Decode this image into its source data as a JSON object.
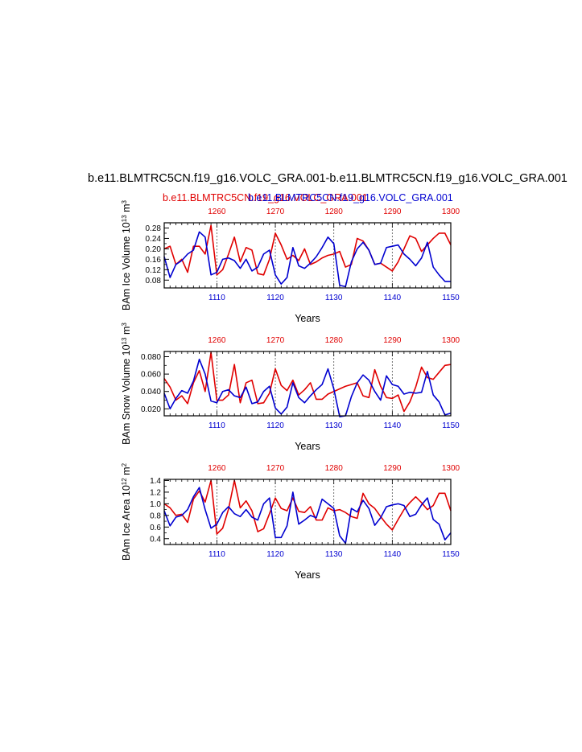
{
  "title": "b.e11.BLMTRC5CN.f19_g16.VOLC_GRA.001-b.e11.BLMTRC5CN.f19_g16.VOLC_GRA.001",
  "subtitle_red": "b.e11.BLMTRC5CN.f19_g16.VOLC_GRA.001",
  "subtitle_blue": "b.e11.BLMTRC5CN.f19_g16.VOLC_GRA.001",
  "colors": {
    "red": "#e00000",
    "blue": "#0000d0"
  },
  "chart_data": [
    {
      "type": "line",
      "ylabel": "BAm Ice Volume 10",
      "ylabel_exp": "13",
      "ylabel_unit": "m",
      "ylabel_unit_exp": "3",
      "xlabel": "Years",
      "ylim": [
        0.05,
        0.3
      ],
      "yticks": [
        0.08,
        0.12,
        0.16,
        0.2,
        0.24,
        0.28
      ],
      "ytick_labels": [
        "0.08",
        "0.12",
        "0.16",
        "0.20",
        "0.24",
        "0.28"
      ],
      "xlim_bottom": [
        1101,
        1150
      ],
      "xticks_bottom": [
        "1110",
        "1120",
        "1130",
        "1140",
        "1150"
      ],
      "xlim_top": [
        1251,
        1300
      ],
      "xticks_top": [
        "1260",
        "1270",
        "1280",
        "1290",
        "1300"
      ],
      "series": [
        {
          "color": "red",
          "axis": "top",
          "x": [
            1251,
            1252,
            1253,
            1254,
            1255,
            1256,
            1257,
            1258,
            1259,
            1260,
            1261,
            1262,
            1263,
            1264,
            1265,
            1266,
            1267,
            1268,
            1269,
            1270,
            1271,
            1272,
            1273,
            1274,
            1275,
            1276,
            1277,
            1278,
            1279,
            1280,
            1281,
            1282,
            1283,
            1284,
            1285,
            1286,
            1287,
            1288,
            1289,
            1290,
            1291,
            1292,
            1293,
            1294,
            1295,
            1296,
            1297,
            1298,
            1299,
            1300
          ],
          "y": [
            0.2,
            0.21,
            0.14,
            0.16,
            0.11,
            0.21,
            0.21,
            0.18,
            0.29,
            0.1,
            0.12,
            0.18,
            0.245,
            0.15,
            0.205,
            0.195,
            0.105,
            0.1,
            0.16,
            0.26,
            0.215,
            0.16,
            0.175,
            0.155,
            0.2,
            0.14,
            0.15,
            0.165,
            0.175,
            0.18,
            0.19,
            0.13,
            0.14,
            0.24,
            0.23,
            0.195,
            0.14,
            0.145,
            0.13,
            0.115,
            0.15,
            0.2,
            0.25,
            0.24,
            0.19,
            0.215,
            0.24,
            0.26,
            0.26,
            0.215
          ]
        },
        {
          "color": "blue",
          "axis": "bottom",
          "x": [
            1101,
            1102,
            1103,
            1104,
            1105,
            1106,
            1107,
            1108,
            1109,
            1110,
            1111,
            1112,
            1113,
            1114,
            1115,
            1116,
            1117,
            1118,
            1119,
            1120,
            1121,
            1122,
            1123,
            1124,
            1125,
            1126,
            1127,
            1128,
            1129,
            1130,
            1131,
            1132,
            1133,
            1134,
            1135,
            1136,
            1137,
            1138,
            1139,
            1140,
            1141,
            1142,
            1143,
            1144,
            1145,
            1146,
            1147,
            1148,
            1149,
            1150
          ],
          "y": [
            0.17,
            0.09,
            0.14,
            0.155,
            0.18,
            0.195,
            0.265,
            0.245,
            0.1,
            0.11,
            0.16,
            0.165,
            0.155,
            0.125,
            0.16,
            0.115,
            0.13,
            0.18,
            0.195,
            0.1,
            0.065,
            0.09,
            0.205,
            0.135,
            0.125,
            0.145,
            0.17,
            0.205,
            0.245,
            0.22,
            0.06,
            0.055,
            0.15,
            0.2,
            0.225,
            0.195,
            0.14,
            0.145,
            0.205,
            0.21,
            0.215,
            0.18,
            0.16,
            0.135,
            0.165,
            0.225,
            0.13,
            0.1,
            0.075,
            0.075
          ]
        }
      ]
    },
    {
      "type": "line",
      "ylabel": "BAm Snow Volume 10",
      "ylabel_exp": "13",
      "ylabel_unit": "m",
      "ylabel_unit_exp": "3",
      "xlabel": "Years",
      "ylim": [
        0.012,
        0.086
      ],
      "yticks": [
        0.02,
        0.04,
        0.06,
        0.08
      ],
      "ytick_labels": [
        "0.020",
        "0.040",
        "0.060",
        "0.080"
      ],
      "xlim_bottom": [
        1101,
        1150
      ],
      "xticks_bottom": [
        "1110",
        "1120",
        "1130",
        "1140",
        "1150"
      ],
      "xlim_top": [
        1251,
        1300
      ],
      "xticks_top": [
        "1260",
        "1270",
        "1280",
        "1290",
        "1300"
      ],
      "series": [
        {
          "color": "red",
          "axis": "top",
          "x": [
            1251,
            1252,
            1253,
            1254,
            1255,
            1256,
            1257,
            1258,
            1259,
            1260,
            1261,
            1262,
            1263,
            1264,
            1265,
            1266,
            1267,
            1268,
            1269,
            1270,
            1271,
            1272,
            1273,
            1274,
            1275,
            1276,
            1277,
            1278,
            1279,
            1280,
            1281,
            1282,
            1283,
            1284,
            1285,
            1286,
            1287,
            1288,
            1289,
            1290,
            1291,
            1292,
            1293,
            1294,
            1295,
            1296,
            1297,
            1298,
            1299,
            1300
          ],
          "y": [
            0.055,
            0.045,
            0.03,
            0.035,
            0.026,
            0.05,
            0.064,
            0.04,
            0.085,
            0.03,
            0.03,
            0.036,
            0.071,
            0.027,
            0.05,
            0.053,
            0.026,
            0.027,
            0.038,
            0.066,
            0.047,
            0.041,
            0.053,
            0.036,
            0.042,
            0.05,
            0.031,
            0.031,
            0.037,
            0.04,
            0.043,
            0.046,
            0.048,
            0.05,
            0.035,
            0.033,
            0.065,
            0.046,
            0.033,
            0.032,
            0.036,
            0.017,
            0.028,
            0.045,
            0.068,
            0.056,
            0.054,
            0.062,
            0.07,
            0.071
          ]
        },
        {
          "color": "blue",
          "axis": "bottom",
          "x": [
            1101,
            1102,
            1103,
            1104,
            1105,
            1106,
            1107,
            1108,
            1109,
            1110,
            1111,
            1112,
            1113,
            1114,
            1115,
            1116,
            1117,
            1118,
            1119,
            1120,
            1121,
            1122,
            1123,
            1124,
            1125,
            1126,
            1127,
            1128,
            1129,
            1130,
            1131,
            1132,
            1133,
            1134,
            1135,
            1136,
            1137,
            1138,
            1139,
            1140,
            1141,
            1142,
            1143,
            1144,
            1145,
            1146,
            1147,
            1148,
            1149,
            1150
          ],
          "y": [
            0.038,
            0.02,
            0.032,
            0.041,
            0.038,
            0.052,
            0.077,
            0.06,
            0.029,
            0.027,
            0.04,
            0.042,
            0.035,
            0.033,
            0.045,
            0.026,
            0.028,
            0.04,
            0.046,
            0.021,
            0.014,
            0.022,
            0.05,
            0.033,
            0.027,
            0.035,
            0.042,
            0.048,
            0.066,
            0.043,
            0.011,
            0.012,
            0.034,
            0.05,
            0.059,
            0.053,
            0.04,
            0.03,
            0.058,
            0.048,
            0.046,
            0.037,
            0.039,
            0.038,
            0.039,
            0.063,
            0.036,
            0.028,
            0.013,
            0.015
          ]
        }
      ]
    },
    {
      "type": "line",
      "ylabel": "BAm Ice Area 10",
      "ylabel_exp": "12",
      "ylabel_unit": "m",
      "ylabel_unit_exp": "2",
      "xlabel": "Years",
      "ylim": [
        0.3,
        1.42
      ],
      "yticks": [
        0.4,
        0.6,
        0.8,
        1.0,
        1.2,
        1.4
      ],
      "ytick_labels": [
        "0.4",
        "0.6",
        "0.8",
        "1.0",
        "1.2",
        "1.4"
      ],
      "xlim_bottom": [
        1101,
        1150
      ],
      "xticks_bottom": [
        "1110",
        "1120",
        "1130",
        "1140",
        "1150"
      ],
      "xlim_top": [
        1251,
        1300
      ],
      "xticks_top": [
        "1260",
        "1270",
        "1280",
        "1290",
        "1300"
      ],
      "series": [
        {
          "color": "red",
          "axis": "top",
          "x": [
            1251,
            1252,
            1253,
            1254,
            1255,
            1256,
            1257,
            1258,
            1259,
            1260,
            1261,
            1262,
            1263,
            1264,
            1265,
            1266,
            1267,
            1268,
            1269,
            1270,
            1271,
            1272,
            1273,
            1274,
            1275,
            1276,
            1277,
            1278,
            1279,
            1280,
            1281,
            1282,
            1283,
            1284,
            1285,
            1286,
            1287,
            1288,
            1289,
            1290,
            1291,
            1292,
            1293,
            1294,
            1295,
            1296,
            1297,
            1298,
            1299,
            1300
          ],
          "y": [
            1.0,
            0.93,
            0.8,
            0.82,
            0.68,
            1.08,
            1.22,
            1.03,
            1.4,
            0.48,
            0.58,
            0.91,
            1.4,
            0.93,
            1.05,
            0.88,
            0.52,
            0.57,
            0.83,
            1.1,
            0.92,
            0.88,
            1.1,
            0.87,
            0.85,
            0.95,
            0.72,
            0.72,
            0.93,
            0.88,
            0.9,
            0.85,
            0.78,
            0.75,
            1.18,
            1.0,
            0.92,
            0.78,
            0.65,
            0.55,
            0.73,
            0.9,
            1.02,
            1.12,
            1.02,
            0.9,
            0.97,
            1.18,
            1.18,
            0.88
          ]
        },
        {
          "color": "blue",
          "axis": "bottom",
          "x": [
            1101,
            1102,
            1103,
            1104,
            1105,
            1106,
            1107,
            1108,
            1109,
            1110,
            1111,
            1112,
            1113,
            1114,
            1115,
            1116,
            1117,
            1118,
            1119,
            1120,
            1121,
            1122,
            1123,
            1124,
            1125,
            1126,
            1127,
            1128,
            1129,
            1130,
            1131,
            1132,
            1133,
            1134,
            1135,
            1136,
            1137,
            1138,
            1139,
            1140,
            1141,
            1142,
            1143,
            1144,
            1145,
            1146,
            1147,
            1148,
            1149,
            1150
          ],
          "y": [
            0.88,
            0.62,
            0.77,
            0.8,
            0.9,
            1.12,
            1.28,
            0.9,
            0.58,
            0.65,
            0.85,
            0.95,
            0.83,
            0.78,
            0.9,
            0.77,
            0.72,
            1.0,
            1.1,
            0.42,
            0.42,
            0.62,
            1.2,
            0.65,
            0.72,
            0.8,
            0.76,
            1.08,
            1.0,
            0.92,
            0.45,
            0.32,
            0.92,
            0.86,
            1.06,
            0.92,
            0.63,
            0.76,
            0.95,
            0.98,
            1.0,
            0.97,
            0.78,
            0.82,
            0.98,
            1.1,
            0.73,
            0.65,
            0.38,
            0.5
          ]
        }
      ]
    }
  ]
}
